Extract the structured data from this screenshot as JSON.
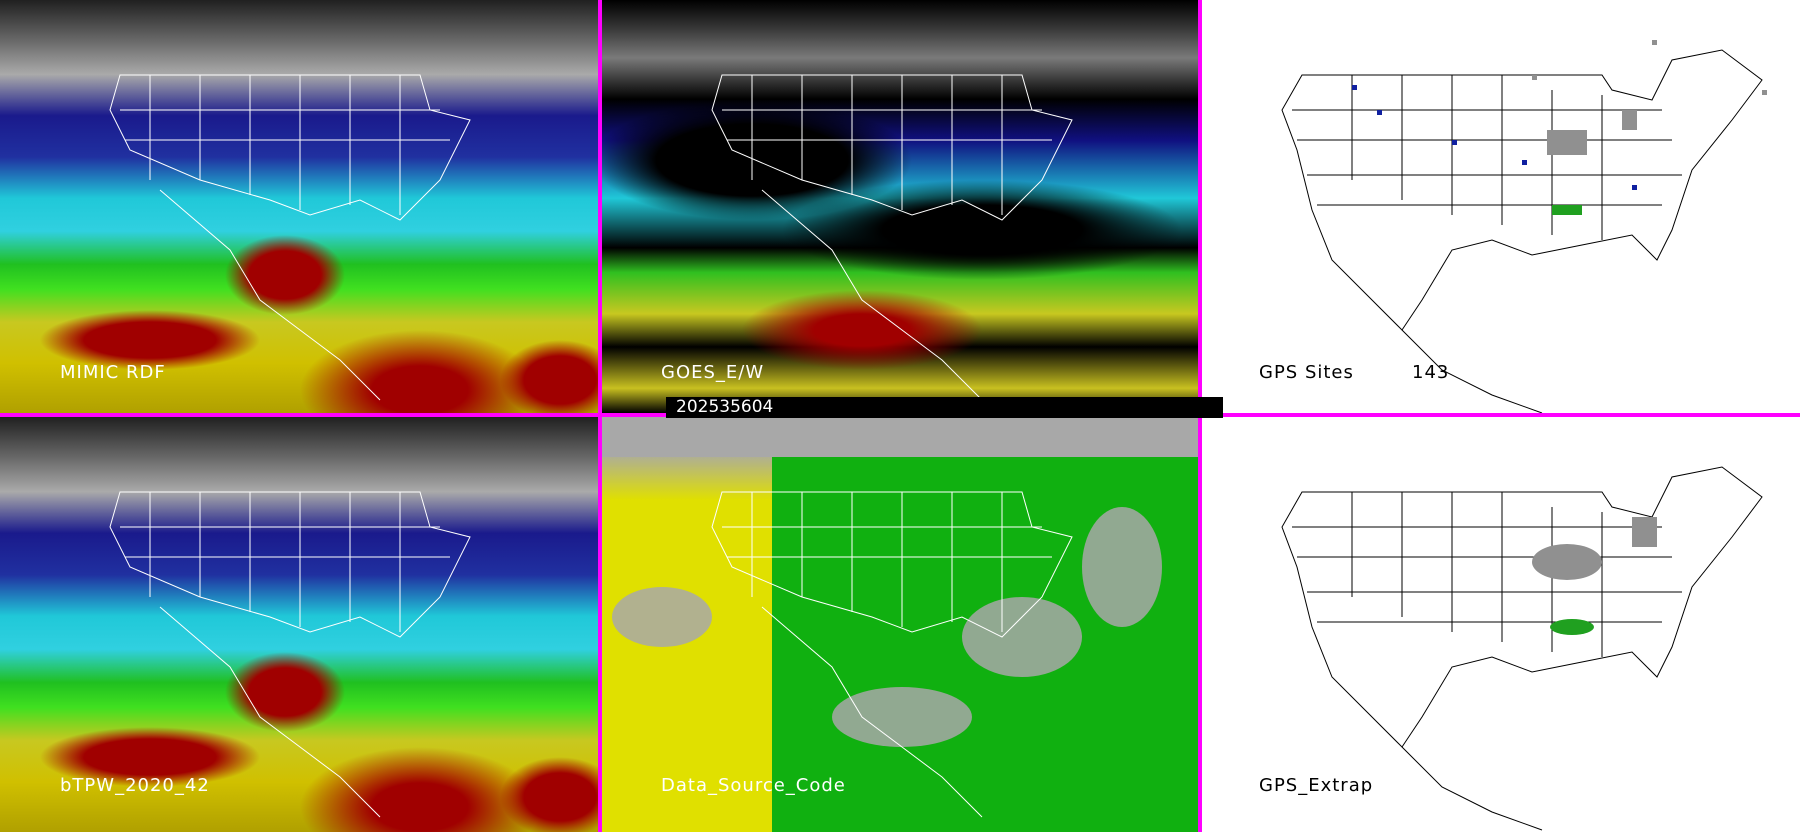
{
  "panels": [
    {
      "label": "MIMIC RDF"
    },
    {
      "label": "GOES_E/W",
      "date": "202535604"
    },
    {
      "label": "GPS Sites",
      "count": "143"
    },
    {
      "label": "bTPW_2020_42"
    },
    {
      "label": "Data_Source_Code"
    },
    {
      "label": "GPS_Extrap"
    }
  ],
  "colors": {
    "separator": "#ff00ff",
    "high_tpw": "#a00000",
    "mid_tpw": "#c8c820",
    "low_tpw": "#1a1a8c",
    "gps_site_blue": "#1020a0",
    "gps_site_gray": "#909090"
  }
}
